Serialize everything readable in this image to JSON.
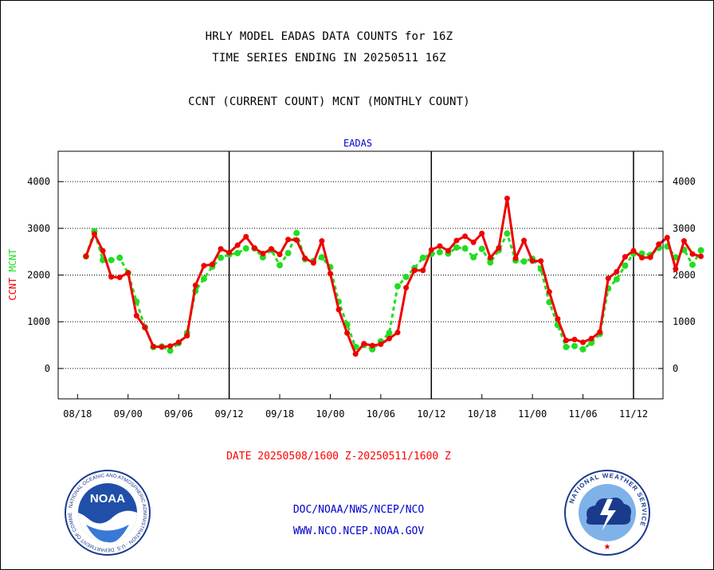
{
  "titles": {
    "line1": "HRLY MODEL EADAS DATA COUNTS for 16Z",
    "line2": "TIME SERIES ENDING IN 20250511 16Z",
    "line3": "CCNT (CURRENT COUNT) MCNT (MONTHLY COUNT)"
  },
  "footer": {
    "date_range": "DATE 20250508/1600 Z-20250511/1600 Z",
    "org": "DOC/NOAA/NWS/NCEP/NCO",
    "url": "WWW.NCO.NCEP.NOAA.GOV"
  },
  "logos": {
    "left_text": "NOAA",
    "left_ring": "NATIONAL OCEANIC AND ATMOSPHERIC ADMINISTRATION · U.S. DEPARTMENT OF COMMERCE",
    "right_ring": "NATIONAL WEATHER SERVICE"
  },
  "colors": {
    "ccnt": "#ee0000",
    "mcnt": "#22dd22",
    "title_blue": "#0000cc",
    "date_red": "#ff0000"
  },
  "chart_data": {
    "type": "line",
    "title": "EADAS",
    "ylabel_left": [
      "CCNT",
      "MCNT"
    ],
    "y_ticks": [
      0,
      1000,
      2000,
      3000,
      4000
    ],
    "ylim": [
      -650,
      4650
    ],
    "x_tick_labels": [
      "08/18",
      "09/00",
      "09/06",
      "09/12",
      "09/18",
      "10/00",
      "10/06",
      "10/12",
      "10/18",
      "11/00",
      "11/06",
      "11/12"
    ],
    "x_tick_positions": [
      -1,
      5,
      11,
      17,
      23,
      29,
      35,
      41,
      47,
      53,
      59,
      65
    ],
    "xlim": [
      -3.3,
      68.5
    ],
    "day_boundaries": [
      17,
      41,
      65
    ],
    "grid": "horizontal dotted",
    "series": [
      {
        "name": "CCNT",
        "values": [
          2400,
          2880,
          2520,
          1960,
          1950,
          2050,
          1130,
          880,
          470,
          460,
          480,
          560,
          700,
          1780,
          2200,
          2230,
          2560,
          2480,
          2640,
          2820,
          2580,
          2460,
          2560,
          2440,
          2760,
          2750,
          2360,
          2260,
          2730,
          2030,
          1260,
          760,
          310,
          530,
          490,
          520,
          640,
          770,
          1730,
          2100,
          2100,
          2540,
          2620,
          2520,
          2740,
          2830,
          2700,
          2890,
          2370,
          2580,
          3640,
          2360,
          2740,
          2300,
          2300,
          1640,
          1060,
          600,
          620,
          560,
          640,
          780,
          1930,
          2070,
          2390,
          2520,
          2370,
          2380,
          2660,
          2800,
          2130,
          2730,
          2450,
          2400
        ]
      },
      {
        "name": "MCNT",
        "values": [
          2400,
          2940,
          2320,
          2320,
          2370,
          2040,
          1430,
          880,
          460,
          470,
          380,
          540,
          760,
          1660,
          1920,
          2180,
          2370,
          2440,
          2470,
          2570,
          2570,
          2380,
          2540,
          2210,
          2470,
          2900,
          2340,
          2300,
          2380,
          2170,
          1430,
          940,
          460,
          500,
          410,
          580,
          760,
          1760,
          1960,
          2150,
          2370,
          2450,
          2490,
          2460,
          2590,
          2570,
          2380,
          2560,
          2270,
          2530,
          2890,
          2310,
          2290,
          2350,
          2130,
          1420,
          930,
          460,
          480,
          410,
          550,
          740,
          1710,
          1910,
          2200,
          2460,
          2460,
          2430,
          2580,
          2610,
          2380,
          2540,
          2220,
          2530
        ]
      }
    ]
  }
}
